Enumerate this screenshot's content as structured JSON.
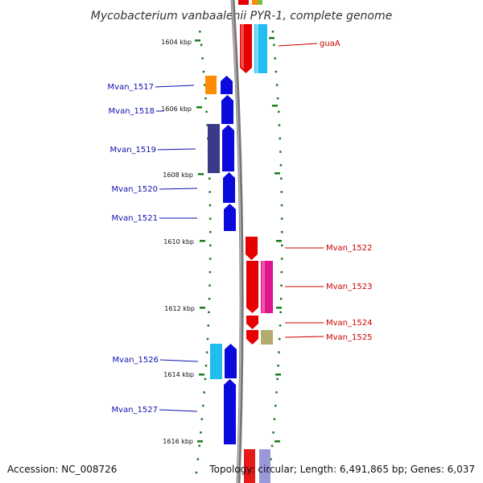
{
  "title": "Mycobacterium vanbaalenii PYR-1, complete genome",
  "accession": "Accession: NC_008726",
  "topology": "Topology: circular; Length: 6,491,865 bp; Genes: 6,037",
  "kbp_labels": [
    "1604 kbp",
    "1606 kbp",
    "1608 kbp",
    "1610 kbp",
    "1612 kbp",
    "1614 kbp",
    "1616 kbp"
  ],
  "genes_left": [
    "Mvan_1517",
    "Mvan_1518",
    "Mvan_1519",
    "Mvan_1520",
    "Mvan_1521",
    "Mvan_1526",
    "Mvan_1527"
  ],
  "genes_right": [
    "guaA",
    "Mvan_1522",
    "Mvan_1523",
    "Mvan_1524",
    "Mvan_1525"
  ],
  "colors": {
    "left_label": "#1010b0",
    "right_label": "#cc0000",
    "tick": "#1a7a1a",
    "backbone": "#888888",
    "blue_gene": "#0a0adc",
    "red_gene": "#e60000",
    "cyan_gene": "#22bdf0",
    "orange_gene": "#ff8c00",
    "navy_gene": "#3a3a88",
    "magenta_gene": "#e0148c",
    "olive_gene": "#b4aa6c"
  }
}
